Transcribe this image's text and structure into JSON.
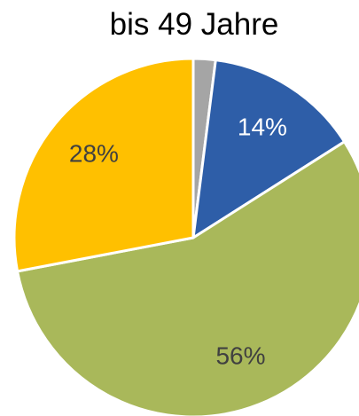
{
  "chart_data": {
    "type": "pie",
    "title": "bis 49 Jahre",
    "slices": [
      {
        "label": "",
        "value": 2,
        "display": "",
        "color": "#A5A5A5"
      },
      {
        "label": "",
        "value": 14,
        "display": "14%",
        "color": "#2E5EA8"
      },
      {
        "label": "",
        "value": 56,
        "display": "56%",
        "color": "#A9B85A"
      },
      {
        "label": "",
        "value": 28,
        "display": "28%",
        "color": "#FFC000"
      }
    ],
    "start_angle_deg": 0,
    "direction": "clockwise"
  }
}
